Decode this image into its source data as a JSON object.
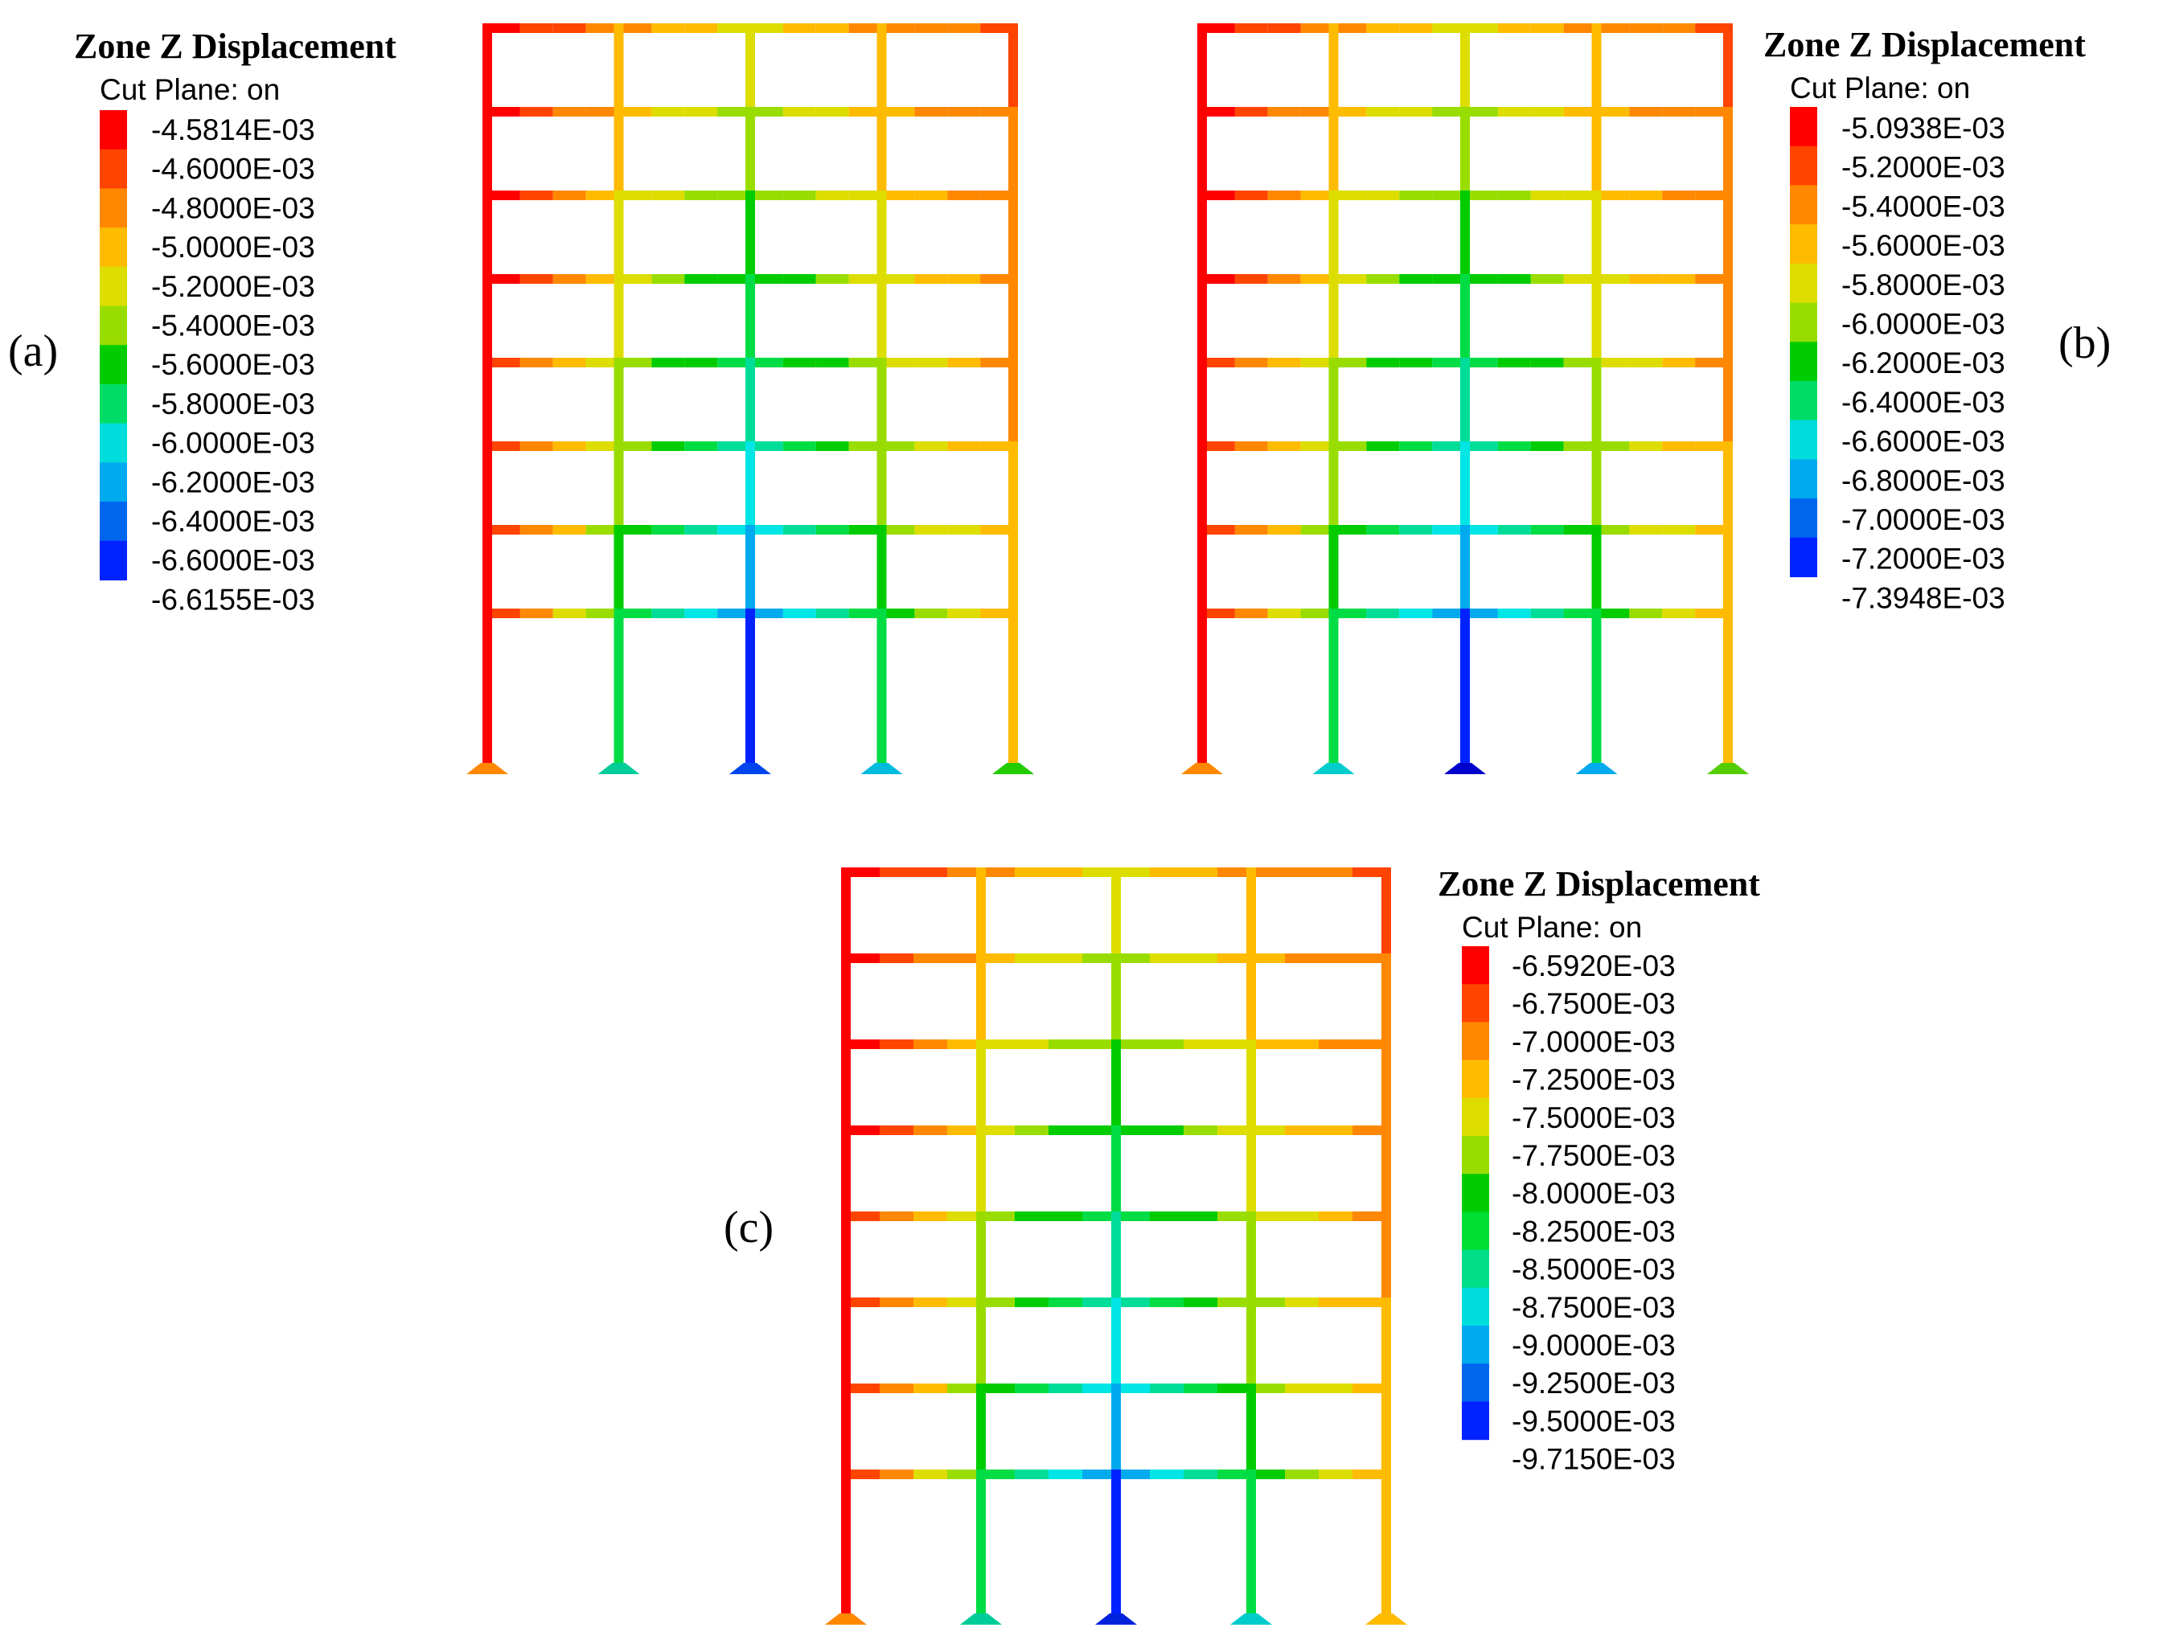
{
  "colors": [
    "#ff0000",
    "#ff4400",
    "#ff8800",
    "#ffbb00",
    "#dddd00",
    "#99dd00",
    "#00cc00",
    "#00dd44",
    "#00dd99",
    "#00e5e5",
    "#00aaee",
    "#0066ee",
    "#0022ff",
    "#0000ee"
  ],
  "panels": [
    {
      "label": "(a)",
      "title": "Zone Z Displacement",
      "subtitle": "Cut Plane: on",
      "legend_labels": [
        "-4.5814E-03",
        "-4.6000E-03",
        "-4.8000E-03",
        "-5.0000E-03",
        "-5.2000E-03",
        "-5.4000E-03",
        "-5.6000E-03",
        "-5.8000E-03",
        "-6.0000E-03",
        "-6.2000E-03",
        "-6.4000E-03",
        "-6.6000E-03",
        "-6.6155E-03"
      ],
      "legend_colors": [
        "#ff0000",
        "#ff4400",
        "#ff8800",
        "#ffbb00",
        "#dddd00",
        "#99dd00",
        "#00cc00",
        "#00dd66",
        "#00dddd",
        "#00aaee",
        "#0066ee",
        "#0022ff"
      ],
      "base_colors": [
        "#ff8800",
        "#00cc99",
        "#0044ee",
        "#00bbdd",
        "#22cc00"
      ]
    },
    {
      "label": "(b)",
      "title": "Zone Z Displacement",
      "subtitle": "Cut Plane: on",
      "legend_labels": [
        "-5.0938E-03",
        "-5.2000E-03",
        "-5.4000E-03",
        "-5.6000E-03",
        "-5.8000E-03",
        "-6.0000E-03",
        "-6.2000E-03",
        "-6.4000E-03",
        "-6.6000E-03",
        "-6.8000E-03",
        "-7.0000E-03",
        "-7.2000E-03",
        "-7.3948E-03"
      ],
      "legend_colors": [
        "#ff0000",
        "#ff4400",
        "#ff8800",
        "#ffbb00",
        "#dddd00",
        "#99dd00",
        "#00cc00",
        "#00dd66",
        "#00dddd",
        "#00aaee",
        "#0066ee",
        "#0022ff"
      ],
      "base_colors": [
        "#ff8800",
        "#00cccc",
        "#0000cc",
        "#00aaee",
        "#55cc00"
      ]
    },
    {
      "label": "(c)",
      "title": "Zone Z Displacement",
      "subtitle": "Cut Plane: on",
      "legend_labels": [
        "-6.5920E-03",
        "-6.7500E-03",
        "-7.0000E-03",
        "-7.2500E-03",
        "-7.5000E-03",
        "-7.7500E-03",
        "-8.0000E-03",
        "-8.2500E-03",
        "-8.5000E-03",
        "-8.7500E-03",
        "-9.0000E-03",
        "-9.2500E-03",
        "-9.5000E-03",
        "-9.7150E-03"
      ],
      "legend_colors": [
        "#ff0000",
        "#ff4400",
        "#ff8800",
        "#ffbb00",
        "#dddd00",
        "#99dd00",
        "#00cc00",
        "#00dd33",
        "#00dd88",
        "#00dddd",
        "#00aaee",
        "#0066ee",
        "#0022ff"
      ],
      "base_colors": [
        "#ff8800",
        "#00cc99",
        "#0022dd",
        "#00cccc",
        "#ffbb00"
      ]
    }
  ]
}
